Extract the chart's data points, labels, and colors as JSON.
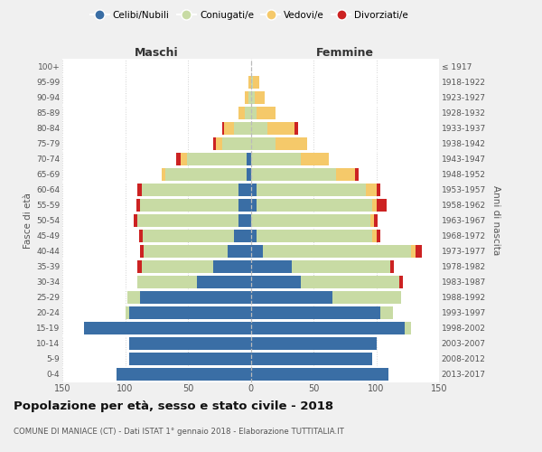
{
  "age_groups": [
    "0-4",
    "5-9",
    "10-14",
    "15-19",
    "20-24",
    "25-29",
    "30-34",
    "35-39",
    "40-44",
    "45-49",
    "50-54",
    "55-59",
    "60-64",
    "65-69",
    "70-74",
    "75-79",
    "80-84",
    "85-89",
    "90-94",
    "95-99",
    "100+"
  ],
  "birth_years": [
    "2013-2017",
    "2008-2012",
    "2003-2007",
    "1998-2002",
    "1993-1997",
    "1988-1992",
    "1983-1987",
    "1978-1982",
    "1973-1977",
    "1968-1972",
    "1963-1967",
    "1958-1962",
    "1953-1957",
    "1948-1952",
    "1943-1947",
    "1938-1942",
    "1933-1937",
    "1928-1932",
    "1923-1927",
    "1918-1922",
    "≤ 1917"
  ],
  "male": {
    "celibi": [
      107,
      97,
      97,
      133,
      97,
      88,
      43,
      30,
      18,
      13,
      10,
      10,
      10,
      3,
      3,
      0,
      0,
      0,
      0,
      0,
      0
    ],
    "coniugati": [
      0,
      0,
      0,
      0,
      3,
      10,
      47,
      57,
      67,
      73,
      80,
      78,
      77,
      65,
      48,
      23,
      13,
      5,
      2,
      0,
      0
    ],
    "vedovi": [
      0,
      0,
      0,
      0,
      0,
      0,
      0,
      0,
      0,
      0,
      0,
      0,
      0,
      3,
      5,
      5,
      8,
      5,
      3,
      2,
      0
    ],
    "divorziati": [
      0,
      0,
      0,
      0,
      0,
      0,
      0,
      3,
      3,
      3,
      3,
      3,
      3,
      0,
      3,
      2,
      2,
      0,
      0,
      0,
      0
    ]
  },
  "female": {
    "nubili": [
      110,
      97,
      100,
      123,
      103,
      65,
      40,
      33,
      10,
      5,
      0,
      5,
      5,
      0,
      0,
      0,
      0,
      0,
      0,
      0,
      0
    ],
    "coniugate": [
      0,
      0,
      0,
      5,
      10,
      55,
      78,
      78,
      118,
      92,
      95,
      92,
      87,
      68,
      40,
      20,
      13,
      5,
      3,
      2,
      0
    ],
    "vedove": [
      0,
      0,
      0,
      0,
      0,
      0,
      0,
      0,
      3,
      3,
      3,
      3,
      8,
      15,
      22,
      25,
      22,
      15,
      8,
      5,
      0
    ],
    "divorziate": [
      0,
      0,
      0,
      0,
      0,
      0,
      3,
      3,
      5,
      3,
      3,
      8,
      3,
      3,
      0,
      0,
      3,
      0,
      0,
      0,
      0
    ]
  },
  "colors": {
    "celibi": "#3a6ea5",
    "coniugati": "#c8dba4",
    "vedovi": "#f5c96a",
    "divorziati": "#cc2222"
  },
  "title": "Popolazione per età, sesso e stato civile - 2018",
  "subtitle": "COMUNE DI MANIACE (CT) - Dati ISTAT 1° gennaio 2018 - Elaborazione TUTTITALIA.IT",
  "label_maschi": "Maschi",
  "label_femmine": "Femmine",
  "ylabel_left": "Fasce di età",
  "ylabel_right": "Anni di nascita",
  "xlim": 150,
  "bg_color": "#f0f0f0",
  "plot_bg": "#ffffff",
  "grid_color": "#cccccc"
}
